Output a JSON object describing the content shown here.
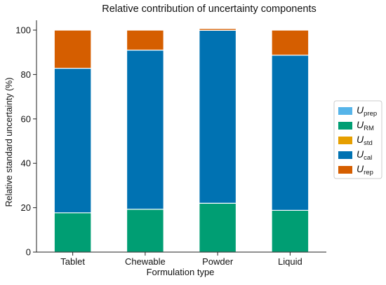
{
  "chart_data": {
    "type": "bar",
    "stacked": true,
    "title": "Relative contribution of uncertainty components",
    "xlabel": "Formulation type",
    "ylabel": "Relative standard uncertainty (%)",
    "ylim": [
      0,
      100
    ],
    "yticks": [
      0,
      20,
      40,
      60,
      80,
      100
    ],
    "grid": false,
    "legend_position": "right",
    "categories": [
      "Tablet",
      "Chewable",
      "Powder",
      "Liquid"
    ],
    "series": [
      {
        "symbol": "U",
        "subscript": "prep",
        "color": "#56b4e9",
        "values": [
          0.0,
          0.0,
          0.0,
          0.0
        ]
      },
      {
        "symbol": "U",
        "subscript": "RM",
        "color": "#009e73",
        "values": [
          17.7,
          19.3,
          22.0,
          18.8
        ]
      },
      {
        "symbol": "U",
        "subscript": "std",
        "color": "#e69f00",
        "values": [
          0.0,
          0.0,
          0.0,
          0.0
        ]
      },
      {
        "symbol": "U",
        "subscript": "cal",
        "color": "#0072b2",
        "values": [
          65.1,
          71.7,
          77.9,
          69.9
        ]
      },
      {
        "symbol": "U",
        "subscript": "rep",
        "color": "#d55e00",
        "values": [
          17.2,
          9.0,
          0.8,
          11.3
        ]
      }
    ]
  }
}
